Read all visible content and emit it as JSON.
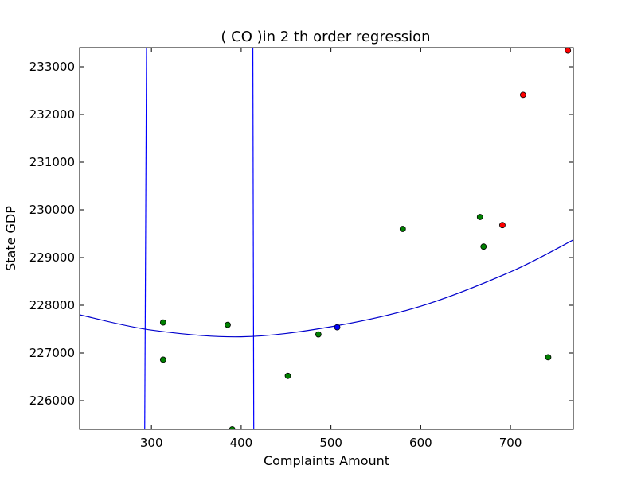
{
  "chart_data": {
    "type": "scatter",
    "title": "(  CO  )in 2 th order regression",
    "xlabel": "Complaints Amount",
    "ylabel": "State GDP",
    "xlim": [
      220,
      770
    ],
    "ylim": [
      225400,
      233400
    ],
    "xticks": [
      300,
      400,
      500,
      600,
      700
    ],
    "yticks": [
      226000,
      227000,
      228000,
      229000,
      230000,
      231000,
      232000,
      233000
    ],
    "grid": false,
    "colors": {
      "green": "#008000",
      "red": "#ff0000",
      "blue": "#0000ff",
      "curve": "#0000cc"
    },
    "points": [
      {
        "x": 313,
        "y": 227640,
        "color": "green"
      },
      {
        "x": 313,
        "y": 226860,
        "color": "green"
      },
      {
        "x": 385,
        "y": 227590,
        "color": "green"
      },
      {
        "x": 390,
        "y": 225400,
        "color": "green"
      },
      {
        "x": 452,
        "y": 226520,
        "color": "green"
      },
      {
        "x": 486,
        "y": 227390,
        "color": "green"
      },
      {
        "x": 507,
        "y": 227540,
        "color": "blue"
      },
      {
        "x": 580,
        "y": 229600,
        "color": "green"
      },
      {
        "x": 666,
        "y": 229850,
        "color": "green"
      },
      {
        "x": 670,
        "y": 229230,
        "color": "green"
      },
      {
        "x": 691,
        "y": 229680,
        "color": "red"
      },
      {
        "x": 714,
        "y": 232410,
        "color": "red"
      },
      {
        "x": 742,
        "y": 226910,
        "color": "green"
      },
      {
        "x": 764,
        "y": 233340,
        "color": "red"
      }
    ],
    "regression_curve": {
      "x": [
        220,
        300,
        400,
        500,
        600,
        700,
        770
      ],
      "y": [
        227800,
        227480,
        227340,
        227550,
        227980,
        228700,
        229370
      ]
    },
    "vertical_lines": [
      {
        "x1": 292.5,
        "y1": 225400,
        "x2": 294.5,
        "y2": 233400
      },
      {
        "x1": 414,
        "y1": 225400,
        "x2": 413,
        "y2": 233400
      }
    ]
  }
}
